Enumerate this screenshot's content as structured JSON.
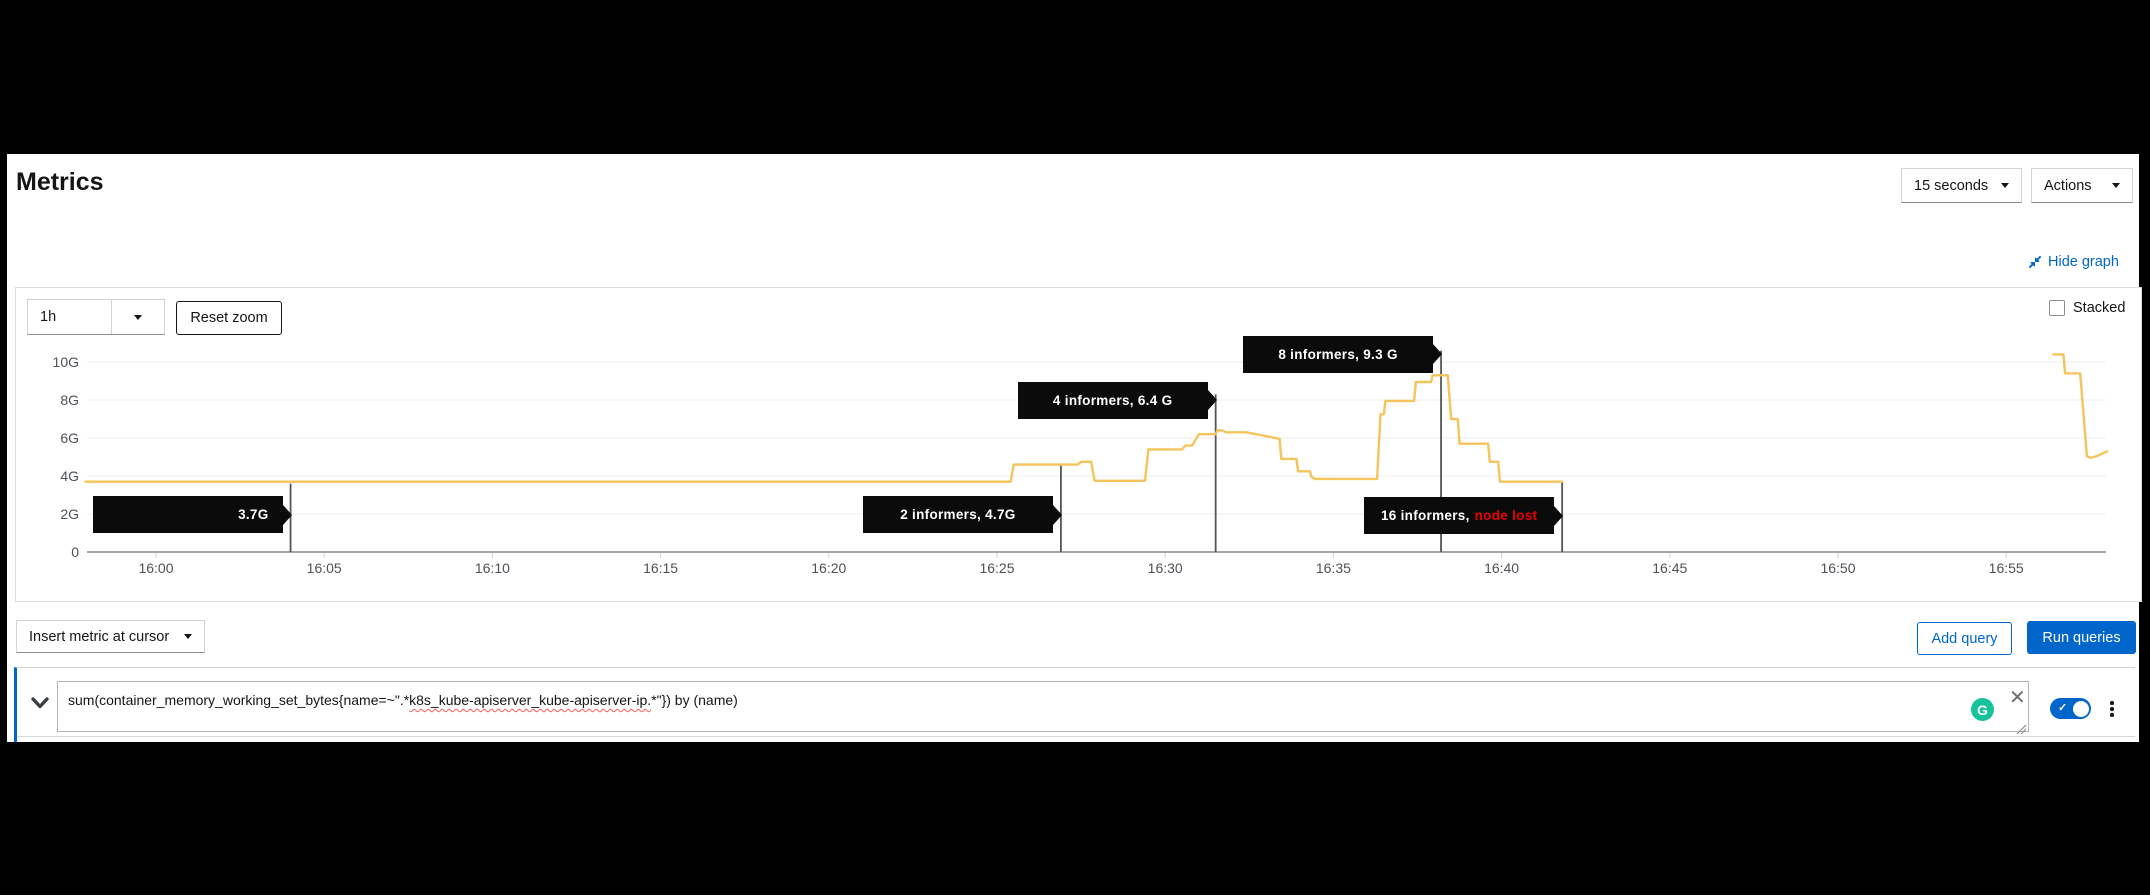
{
  "page": {
    "title": "Metrics"
  },
  "header": {
    "refresh_interval": "15 seconds",
    "actions_label": "Actions"
  },
  "graph_toolbar": {
    "hide_graph_label": "Hide graph",
    "time_span": "1h",
    "reset_zoom_label": "Reset zoom",
    "stacked_label": "Stacked",
    "stacked_checked": false
  },
  "chart_data": {
    "type": "line",
    "title": "",
    "xlabel": "",
    "ylabel": "",
    "grid": true,
    "x_axis_start_time": "16:00",
    "y_ticks": [
      {
        "label": "10G",
        "g": 10
      },
      {
        "label": "8G",
        "g": 8
      },
      {
        "label": "6G",
        "g": 6
      },
      {
        "label": "4G",
        "g": 4
      },
      {
        "label": "2G",
        "g": 2
      },
      {
        "label": "0",
        "g": 0
      }
    ],
    "x_ticks": [
      {
        "label": "16:00",
        "m": 0
      },
      {
        "label": "16:05",
        "m": 5
      },
      {
        "label": "16:10",
        "m": 10
      },
      {
        "label": "16:15",
        "m": 15
      },
      {
        "label": "16:20",
        "m": 20
      },
      {
        "label": "16:25",
        "m": 25
      },
      {
        "label": "16:30",
        "m": 30
      },
      {
        "label": "16:35",
        "m": 35
      },
      {
        "label": "16:40",
        "m": 40
      },
      {
        "label": "16:45",
        "m": 45
      },
      {
        "label": "16:50",
        "m": 50
      },
      {
        "label": "16:55",
        "m": 55
      }
    ],
    "ylim_g": [
      0,
      11
    ],
    "series": [
      {
        "name": "sum(container_memory_working_set_bytes{name=~\".*k8s_kube-apiserver_kube-apiserver-ip.*\"}) by (name)",
        "color": "#f5c45c",
        "unit": "G",
        "segments": [
          [
            [
              -2.1,
              3.7
            ],
            [
              25.4,
              3.7
            ],
            [
              25.5,
              4.6
            ],
            [
              27.4,
              4.6
            ],
            [
              27.5,
              4.75
            ],
            [
              27.8,
              4.75
            ],
            [
              27.9,
              3.75
            ],
            [
              29.4,
              3.75
            ],
            [
              29.5,
              5.4
            ],
            [
              30.5,
              5.4
            ],
            [
              30.6,
              5.6
            ],
            [
              30.8,
              5.6
            ],
            [
              31.0,
              6.2
            ],
            [
              31.5,
              6.2
            ],
            [
              31.55,
              6.4
            ],
            [
              31.7,
              6.4
            ],
            [
              31.8,
              6.3
            ],
            [
              32.4,
              6.3
            ],
            [
              33.0,
              6.1
            ],
            [
              33.4,
              5.95
            ],
            [
              33.45,
              4.9
            ],
            [
              33.9,
              4.9
            ],
            [
              33.95,
              4.25
            ],
            [
              34.3,
              4.25
            ],
            [
              34.35,
              3.95
            ],
            [
              34.45,
              3.85
            ],
            [
              36.3,
              3.85
            ],
            [
              36.4,
              7.25
            ],
            [
              36.5,
              7.25
            ],
            [
              36.55,
              7.95
            ],
            [
              37.4,
              7.95
            ],
            [
              37.45,
              8.95
            ],
            [
              37.9,
              8.95
            ],
            [
              37.95,
              9.3
            ],
            [
              38.4,
              9.3
            ],
            [
              38.5,
              7.0
            ],
            [
              38.7,
              7.0
            ],
            [
              38.75,
              5.7
            ],
            [
              39.6,
              5.7
            ],
            [
              39.65,
              4.75
            ],
            [
              39.9,
              4.75
            ],
            [
              39.95,
              3.7
            ],
            [
              41.8,
              3.7
            ]
          ],
          [
            [
              56.4,
              10.4
            ],
            [
              56.7,
              10.4
            ],
            [
              56.75,
              9.4
            ],
            [
              57.2,
              9.4
            ],
            [
              57.4,
              5.05
            ],
            [
              57.5,
              4.95
            ],
            [
              57.7,
              5.05
            ],
            [
              58.0,
              5.3
            ]
          ]
        ]
      }
    ],
    "annotations": [
      {
        "m": 4.0,
        "text": "3.7G",
        "text_danger": "",
        "line_top_g": 3.6,
        "label_g": 1.95,
        "align": "right"
      },
      {
        "m": 26.9,
        "text": "2 informers, 4.7G",
        "text_danger": "",
        "line_top_g": 4.6,
        "label_g": 1.95,
        "align": "center"
      },
      {
        "m": 31.5,
        "text": "4 informers, 6.4 G",
        "text_danger": "",
        "line_top_g": 8.3,
        "label_g": 8.0,
        "align": "center"
      },
      {
        "m": 38.2,
        "text": "8 informers, 9.3 G",
        "text_danger": "",
        "line_top_g": 10.6,
        "label_g": 10.4,
        "align": "center"
      },
      {
        "m": 41.8,
        "text": "16 informers,",
        "text_danger": "node lost",
        "line_top_g": 3.75,
        "label_g": 1.9,
        "align": "center"
      }
    ]
  },
  "query_toolbar": {
    "insert_metric_label": "Insert metric at cursor",
    "add_query_label": "Add query",
    "run_queries_label": "Run queries"
  },
  "query_row": {
    "expression": "sum(container_memory_working_set_bytes{name=~\".*k8s_kube-apiserver_kube-apiserver-ip.*\"}) by (name)",
    "expression_pre": "sum(container_memory_working_set_bytes{name=~\".*",
    "expression_misspelled": "k8s_kube-apiserver_kube-apiserver-ip.",
    "expression_post": "*\"}) by (name)",
    "enabled": true,
    "grammarly_glyph": "G"
  },
  "icons": {
    "hide_graph": "compress-icon",
    "select_caret": "caret-down-icon",
    "query_expand": "chevron-down-icon",
    "query_clear": "close-icon",
    "query_menu": "kebab-menu-icon",
    "toggle_check": "check-icon",
    "grammarly": "grammarly-icon"
  },
  "colors": {
    "accent_blue": "#0066cc",
    "series_gold": "#f5c45c",
    "tooltip_bg": "#0b0b0b",
    "danger_red": "#ee0000",
    "grammarly_green": "#15c39a"
  }
}
